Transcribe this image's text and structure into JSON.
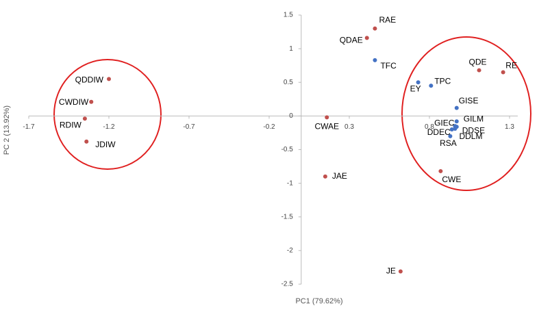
{
  "chart_data": {
    "type": "scatter",
    "xlabel": "PC1 (79.62%)",
    "ylabel": "PC 2 (13.92%)",
    "point_labels": [
      "RAE",
      "QDAE",
      "QDE",
      "RE",
      "QDDIW",
      "CWDIW",
      "RDIW",
      "JDIW",
      "CWAE",
      "JAE",
      "CWE",
      "JE",
      "TFC",
      "EY",
      "TPC",
      "GISE",
      "GILM",
      "GIEC",
      "DDSE",
      "DDEC",
      "DDLM",
      "RSA"
    ],
    "x": [
      0.46,
      0.41,
      1.11,
      1.26,
      -1.2,
      -1.31,
      -1.35,
      -1.34,
      0.16,
      0.15,
      0.87,
      0.62,
      0.46,
      0.73,
      0.81,
      0.97,
      0.97,
      0.96,
      0.97,
      0.94,
      0.96,
      0.93
    ],
    "y": [
      1.3,
      1.16,
      0.68,
      0.65,
      0.55,
      0.21,
      -0.04,
      -0.38,
      -0.02,
      -0.9,
      -0.82,
      -2.31,
      0.83,
      0.5,
      0.45,
      0.12,
      -0.08,
      -0.15,
      -0.16,
      -0.2,
      -0.19,
      -0.3
    ],
    "colors": [
      "#c0504d",
      "#c0504d",
      "#c0504d",
      "#c0504d",
      "#c0504d",
      "#c0504d",
      "#c0504d",
      "#c0504d",
      "#c0504d",
      "#c0504d",
      "#c0504d",
      "#c0504d",
      "#4472c4",
      "#4472c4",
      "#4472c4",
      "#4472c4",
      "#4472c4",
      "#4472c4",
      "#4472c4",
      "#4472c4",
      "#4472c4",
      "#4472c4"
    ],
    "xlim": [
      -1.7,
      1.3
    ],
    "ylim": [
      -2.5,
      1.5
    ],
    "xticks": [
      -1.7,
      -1.2,
      -0.7,
      -0.2,
      0.3,
      0.8,
      1.3
    ],
    "yticks": [
      1.5,
      1,
      0.5,
      0,
      -0.5,
      -1,
      -1.5,
      -2,
      -2.5
    ],
    "grid": false
  }
}
